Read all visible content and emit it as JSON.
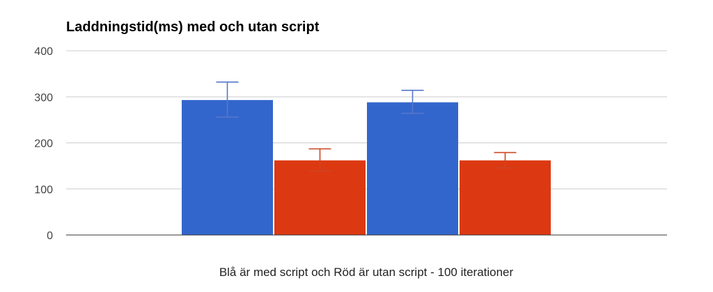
{
  "chart_data": {
    "type": "bar",
    "title": "Laddningstid(ms) med och utan script",
    "xlabel": "Blå är med script och Röd är utan script - 100 iterationer",
    "ylabel": "",
    "ylim": [
      0,
      400
    ],
    "yticks": [
      0,
      100,
      200,
      300,
      400
    ],
    "grid": true,
    "legend": "none",
    "bars": [
      {
        "value": 293,
        "error_low": 256,
        "error_high": 332,
        "color": "#3366cc"
      },
      {
        "value": 162,
        "error_low": 139,
        "error_high": 187,
        "color": "#dc3912"
      },
      {
        "value": 288,
        "error_low": 264,
        "error_high": 314,
        "color": "#3366cc"
      },
      {
        "value": 162,
        "error_low": 146,
        "error_high": 179,
        "color": "#dc3912"
      }
    ]
  },
  "colors": {
    "med_script": "#3366cc",
    "utan_script": "#dc3912",
    "error_bar_blue": "#5577cc",
    "error_bar_red": "#cc4422"
  }
}
